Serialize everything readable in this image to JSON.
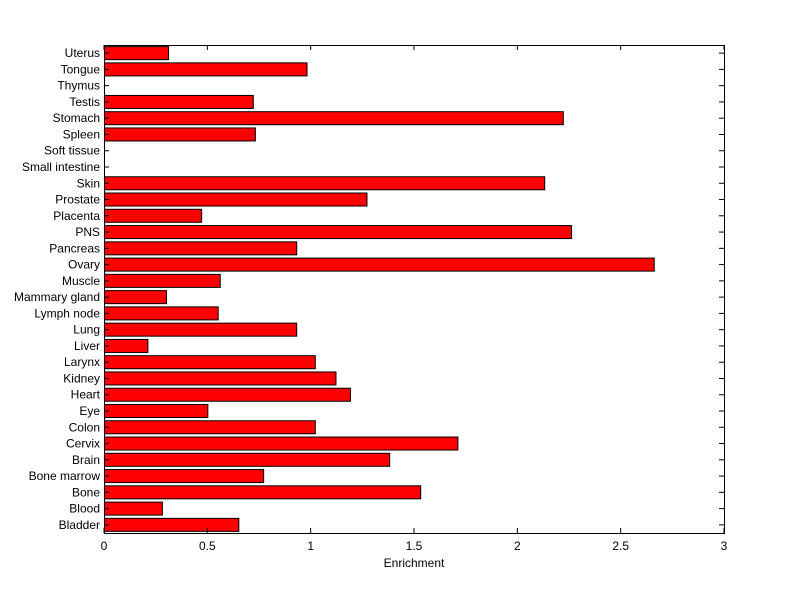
{
  "chart_data": {
    "type": "bar",
    "orientation": "horizontal",
    "title": "",
    "xlabel": "Enrichment",
    "ylabel": "",
    "xlim": [
      0,
      3
    ],
    "xticks": [
      "0",
      "0.5",
      "1",
      "1.5",
      "2",
      "2.5",
      "3"
    ],
    "grid": false,
    "legend": "none",
    "bar_color": "#ff0000",
    "categories": [
      "Bladder",
      "Blood",
      "Bone",
      "Bone marrow",
      "Brain",
      "Cervix",
      "Colon",
      "Eye",
      "Heart",
      "Kidney",
      "Larynx",
      "Liver",
      "Lung",
      "Lymph node",
      "Mammary gland",
      "Muscle",
      "Ovary",
      "Pancreas",
      "PNS",
      "Placenta",
      "Prostate",
      "Skin",
      "Small intestine",
      "Soft tissue",
      "Spleen",
      "Stomach",
      "Testis",
      "Thymus",
      "Tongue",
      "Uterus"
    ],
    "values": [
      0.65,
      0.28,
      1.53,
      0.77,
      1.38,
      1.71,
      1.02,
      0.5,
      1.19,
      1.12,
      1.02,
      0.21,
      0.93,
      0.55,
      0.3,
      0.56,
      2.66,
      0.93,
      2.26,
      0.47,
      1.27,
      2.13,
      0,
      0,
      0.73,
      2.22,
      0.72,
      0,
      0.98,
      0.31
    ]
  }
}
